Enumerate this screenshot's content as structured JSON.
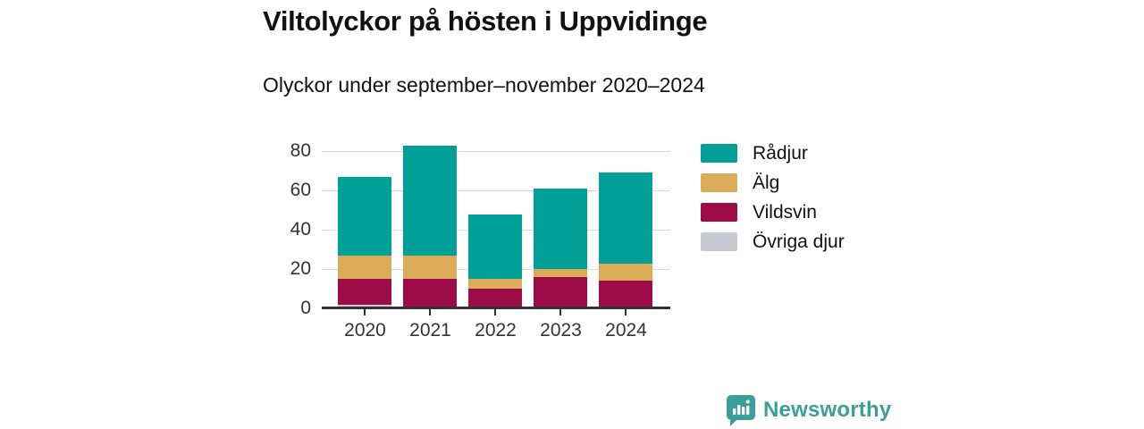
{
  "header": {
    "title": "Viltolyckor på hösten i Uppvidinge",
    "subtitle": "Olyckor under september–november 2020–2024"
  },
  "chart_data": {
    "type": "bar",
    "stacked": true,
    "title": "Viltolyckor på hösten i Uppvidinge",
    "subtitle": "Olyckor under september–november 2020–2024",
    "categories": [
      "2020",
      "2021",
      "2022",
      "2023",
      "2024"
    ],
    "series": [
      {
        "name": "Rådjur",
        "color": "#00A098",
        "values": [
          40,
          56,
          33,
          41,
          46
        ]
      },
      {
        "name": "Älg",
        "color": "#DBAB58",
        "values": [
          12,
          12,
          5,
          4,
          9
        ]
      },
      {
        "name": "Vildsvin",
        "color": "#9D0C46",
        "values": [
          13,
          14,
          9,
          15,
          13
        ]
      },
      {
        "name": "Övriga djur",
        "color": "#C9C9D3",
        "values": [
          1,
          0,
          0,
          0,
          0
        ]
      }
    ],
    "stack_order_bottom_to_top": [
      "Övriga djur",
      "Vildsvin",
      "Älg",
      "Rådjur"
    ],
    "totals": [
      66,
      82,
      47,
      60,
      68
    ],
    "xlabel": "",
    "ylabel": "",
    "ylim": [
      0,
      80
    ],
    "yticks": [
      0,
      20,
      40,
      60,
      80
    ],
    "grid": true,
    "legend_position": "right"
  },
  "footer": {
    "brand": "Newsworthy",
    "brand_color": "#3B9E99"
  },
  "icons": {
    "brand_logo": "bar-chart-speech-bubble-icon"
  }
}
